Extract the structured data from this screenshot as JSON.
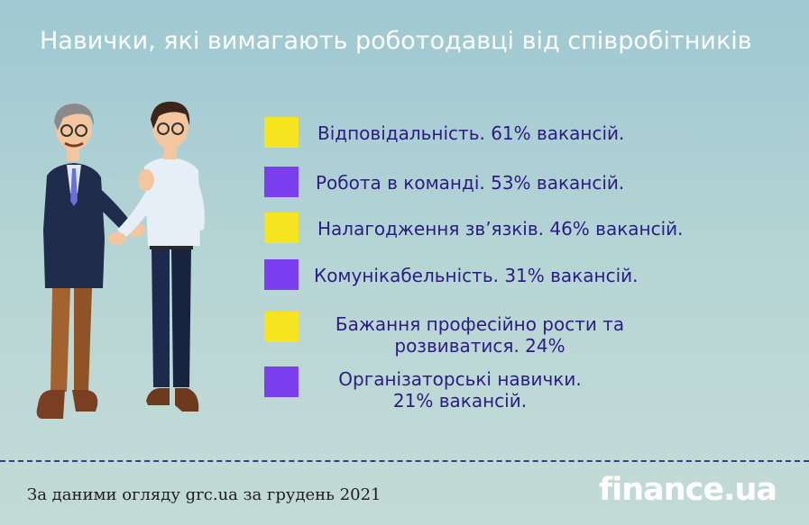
{
  "header": {
    "title": "Навички, які вимагають роботодавці  від співробітників"
  },
  "colors": {
    "yellow": "#f6e51e",
    "purple": "#7b3ff0",
    "text": "#2b1d82"
  },
  "skills": [
    {
      "lines": [
        "Відповідальність. 61% вакансій."
      ],
      "percent": 61,
      "swatch": "yellow"
    },
    {
      "lines": [
        "Робота в команді. 53% вакансій."
      ],
      "percent": 53,
      "swatch": "purple"
    },
    {
      "lines": [
        "Налагодження зв’язків. 46% вакансій."
      ],
      "percent": 46,
      "swatch": "yellow"
    },
    {
      "lines": [
        "Комунікабельність. 31% вакансій."
      ],
      "percent": 31,
      "swatch": "purple"
    },
    {
      "lines": [
        "Бажання професійно рости та",
        "розвиватися.  24%"
      ],
      "percent": 24,
      "swatch": "yellow"
    },
    {
      "lines": [
        "Організаторські навички.",
        "21% вакансій."
      ],
      "percent": 21,
      "swatch": "purple"
    }
  ],
  "footer": {
    "source": "За даними огляду grc.ua за грудень 2021",
    "logo": "finance.ua"
  }
}
